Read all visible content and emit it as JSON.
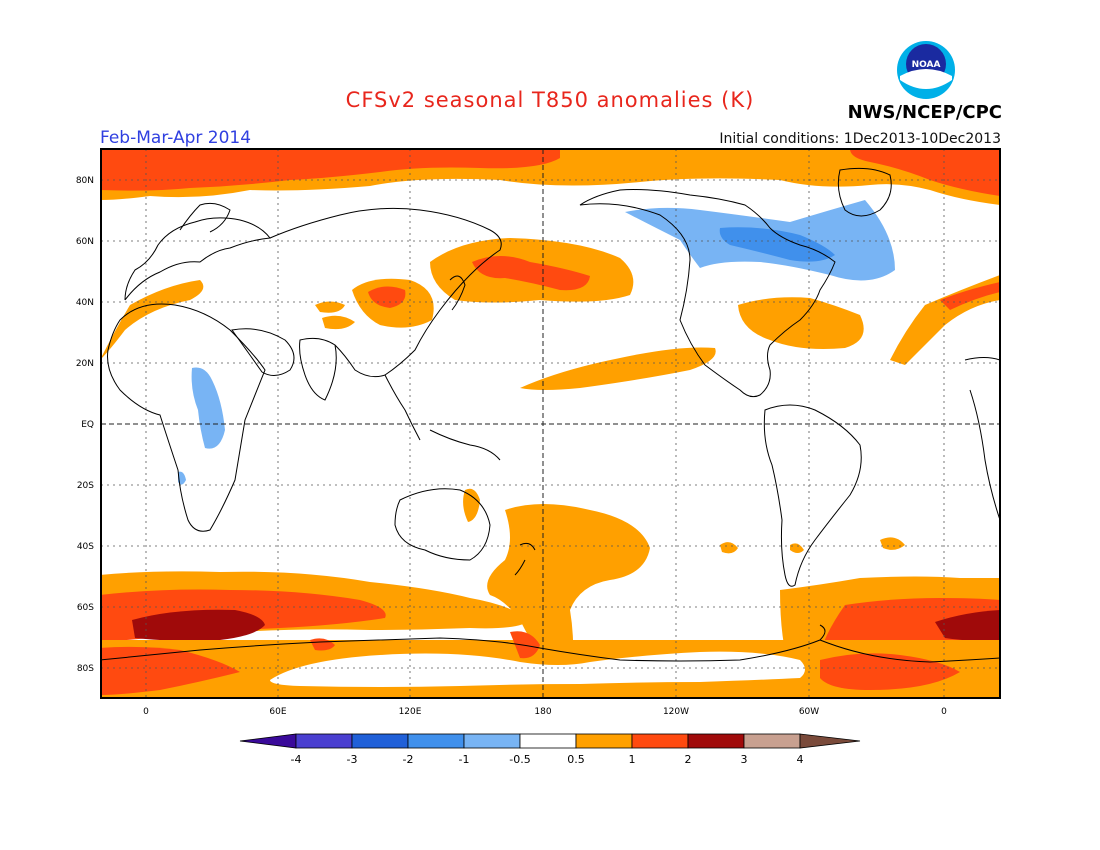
{
  "header": {
    "title": "CFSv2 seasonal T850 anomalies (K)",
    "period": "Feb-Mar-Apr 2014",
    "initial_conditions": "Initial conditions: 1Dec2013-10Dec2013",
    "agency": "NWS/NCEP/CPC",
    "logo_text": "NOAA"
  },
  "map": {
    "lat_labels": [
      "80N",
      "60N",
      "40N",
      "20N",
      "EQ",
      "20S",
      "40S",
      "60S",
      "80S"
    ],
    "lon_labels": [
      "0",
      "60E",
      "120E",
      "180",
      "120W",
      "60W",
      "0"
    ]
  },
  "legend": {
    "labels": [
      "-4",
      "-3",
      "-2",
      "-1",
      "-0.5",
      "0.5",
      "1",
      "2",
      "3",
      "4"
    ],
    "colors": [
      "#3a0a9a",
      "#4a3fd0",
      "#2060d8",
      "#4090ec",
      "#78b4f4",
      "#ffffff",
      "#ffa000",
      "#ff4a10",
      "#a00a0a",
      "#c8a090",
      "#7a4a3a"
    ]
  },
  "colors": {
    "orange": "#ffa000",
    "red": "#ff4a10",
    "darkred": "#a00a0a",
    "lightblue": "#78b4f4",
    "blue": "#4090ec"
  }
}
